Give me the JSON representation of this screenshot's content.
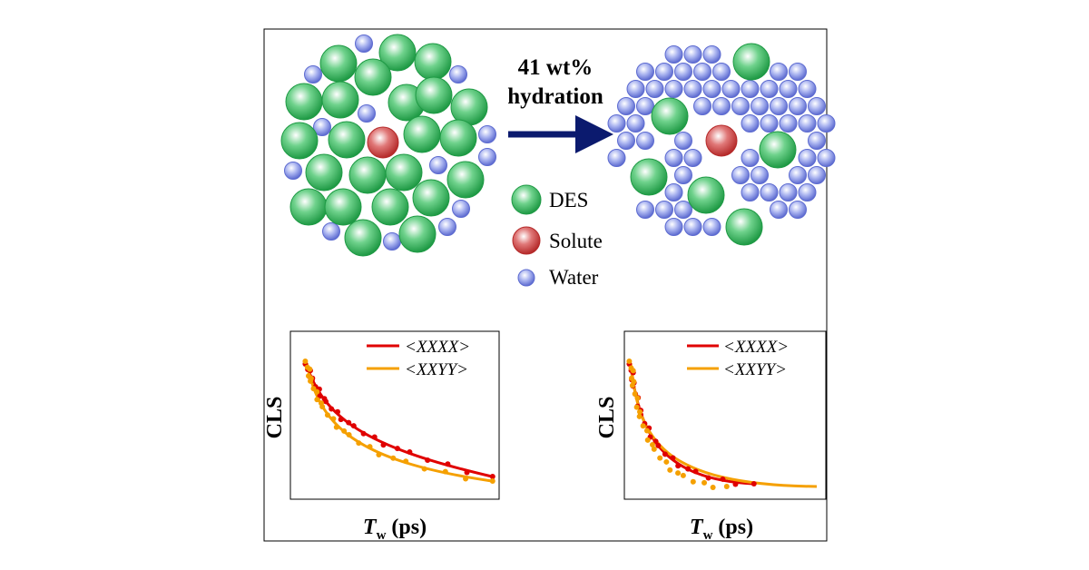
{
  "header": {
    "line1": "41 wt%",
    "line2": "hydration"
  },
  "legend": [
    "DES",
    "Solute",
    "Water"
  ],
  "plots": [
    {
      "legend": [
        "<XXXX>",
        "<XXYY>"
      ],
      "y_label": "CLS",
      "x_label": {
        "symbol": "T",
        "subscript": "w",
        "unit": "(ps)"
      }
    },
    {
      "legend": [
        "<XXXX>",
        "<XXYY>"
      ],
      "y_label": "CLS",
      "x_label": {
        "symbol": "T",
        "subscript": "w",
        "unit": "(ps)"
      }
    }
  ]
}
